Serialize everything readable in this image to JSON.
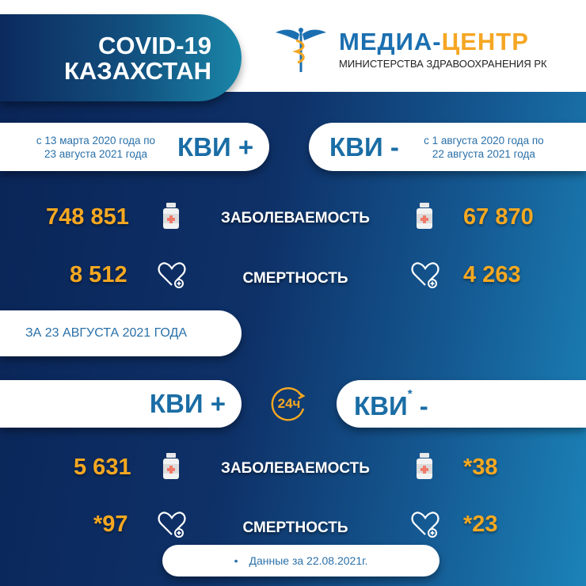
{
  "header": {
    "title_line1": "COVID-19",
    "title_line2": "КАЗАХСТАН",
    "logo_brand_a": "МЕДИА-",
    "logo_brand_b": "ЦЕНТР",
    "logo_subtitle": "МИНИСТЕРСТВА ЗДРАВООХРАНЕНИЯ РК"
  },
  "total": {
    "positive": {
      "label": "КВИ +",
      "period_line1": "с 13 марта 2020 года по",
      "period_line2": "23 августа 2021 года",
      "cases": "748 851",
      "deaths": "8 512"
    },
    "negative": {
      "label": "КВИ -",
      "period_line1": "с 1 августа 2020 года по",
      "period_line2": "22 августа 2021 года",
      "cases": "67 870",
      "deaths": "4 263"
    }
  },
  "labels": {
    "cases": "ЗАБОЛЕВАЕМОСТЬ",
    "deaths": "СМЕРТНОСТЬ"
  },
  "daily": {
    "date_label": "ЗА 23 АВГУСТА 2021 ГОДА",
    "badge": "24ч",
    "positive": {
      "label": "КВИ +",
      "cases": "5 631",
      "deaths": "*97"
    },
    "negative": {
      "label_main": "КВИ",
      "label_star": "*",
      "label_sign": "-",
      "cases": "*38",
      "deaths": "*23"
    }
  },
  "footer": {
    "bullet": "•",
    "note": "Данные за 22.08.2021г."
  },
  "colors": {
    "accent": "#f6a821",
    "brand_blue": "#1a6da5"
  }
}
